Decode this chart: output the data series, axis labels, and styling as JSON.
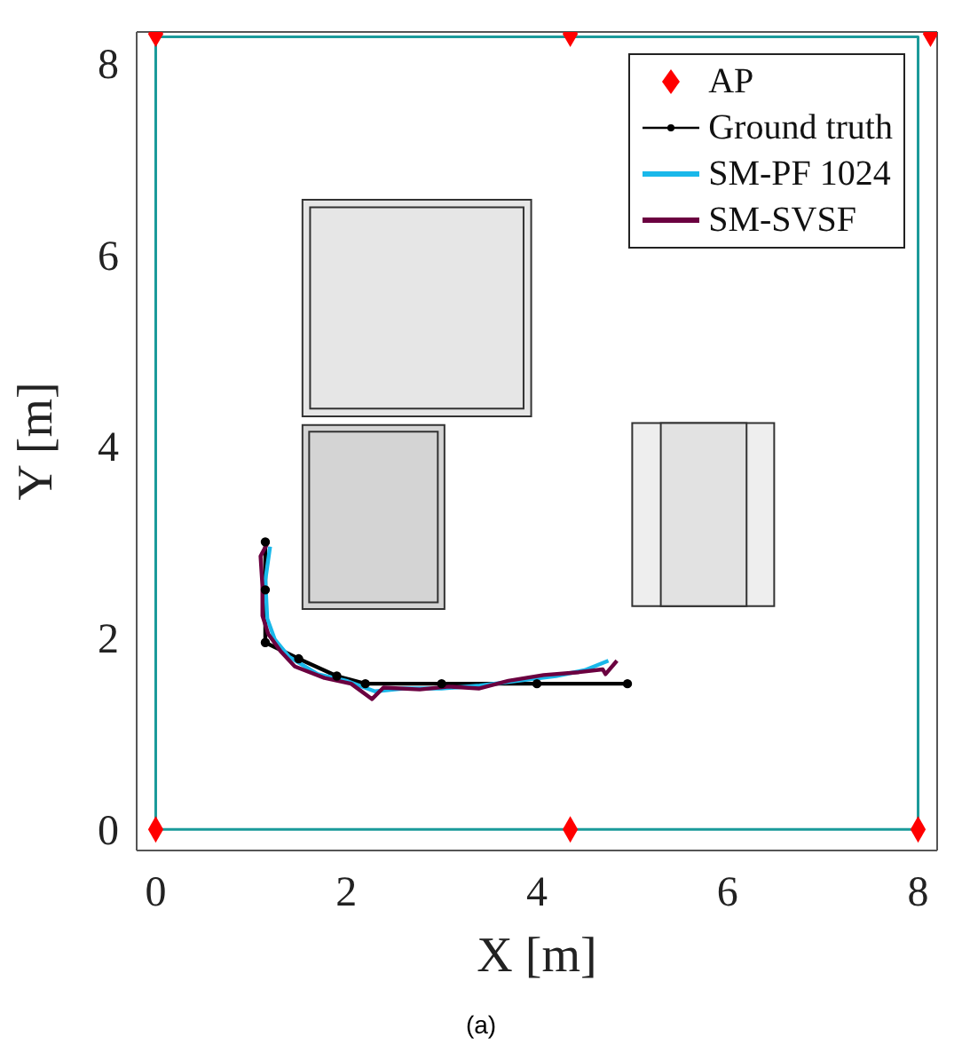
{
  "chart_data": {
    "type": "line",
    "xlabel": "X [m]",
    "ylabel": "Y [m]",
    "xlim": [
      -0.2,
      8.2
    ],
    "ylim": [
      -0.22,
      8.32
    ],
    "xticks": [
      0,
      2,
      4,
      6,
      8
    ],
    "yticks": [
      0,
      2,
      4,
      6,
      8
    ],
    "grid": false,
    "legend": "top right",
    "annotations": [
      "(a)"
    ],
    "series": [
      {
        "type": "scatter",
        "name": "AP",
        "color": "#ff0000",
        "marker": "diamond",
        "x": [
          0,
          4.35,
          8,
          0,
          4.35,
          8.13
        ],
        "values": [
          0,
          0,
          0,
          8.3,
          8.3,
          8.3
        ]
      },
      {
        "name": "Ground truth",
        "color": "#000000",
        "marker": "circle",
        "x": [
          1.15,
          1.15,
          1.15,
          1.5,
          1.9,
          2.2,
          3,
          4,
          4.95
        ],
        "values": [
          3.0,
          2.5,
          1.95,
          1.78,
          1.6,
          1.52,
          1.52,
          1.52,
          1.52
        ]
      },
      {
        "name": "SM-PF 1024",
        "color": "#1ab8ea",
        "marker": "none",
        "x": [
          1.2,
          1.15,
          1.17,
          1.25,
          1.4,
          1.7,
          2.0,
          2.3,
          2.6,
          3.0,
          3.4,
          3.8,
          4.2,
          4.5,
          4.75
        ],
        "values": [
          2.95,
          2.6,
          2.2,
          1.98,
          1.8,
          1.62,
          1.55,
          1.44,
          1.47,
          1.47,
          1.5,
          1.55,
          1.6,
          1.66,
          1.76
        ]
      },
      {
        "name": "SM-SVSF",
        "color": "#6b0040",
        "marker": "none",
        "x": [
          1.18,
          1.1,
          1.12,
          1.12,
          1.18,
          1.31,
          1.46,
          1.77,
          2.05,
          2.27,
          2.39,
          2.77,
          3.08,
          3.39,
          3.7,
          4.07,
          4.44,
          4.69,
          4.72,
          4.84
        ],
        "values": [
          3.0,
          2.85,
          2.54,
          2.23,
          2.04,
          1.86,
          1.7,
          1.58,
          1.52,
          1.36,
          1.48,
          1.46,
          1.49,
          1.47,
          1.55,
          1.61,
          1.64,
          1.67,
          1.62,
          1.76
        ]
      },
      {
        "color": "#1a9a9a",
        "marker": "none",
        "x": [
          0,
          0,
          8,
          8
        ],
        "values": [
          0,
          8.27,
          8.27,
          0
        ]
      },
      {
        "color": "#1a9a9a",
        "marker": "none",
        "x": [
          0,
          8
        ],
        "values": [
          0,
          0
        ]
      }
    ]
  }
}
